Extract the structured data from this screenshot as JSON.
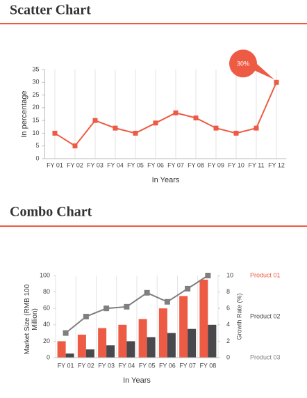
{
  "headings": [
    "Scatter Chart",
    "Combo Chart"
  ],
  "chart_data": [
    {
      "type": "line",
      "categories": [
        "FY 01",
        "FY 02",
        "FY 03",
        "FY 04",
        "FY 05",
        "FY 06",
        "FY 07",
        "FY 08",
        "FY 09",
        "FY 10",
        "FY 11",
        "FY 12"
      ],
      "values": [
        10,
        5,
        15,
        12,
        10,
        14,
        18,
        16,
        12,
        10,
        12,
        30
      ],
      "color": "#ee5b44",
      "ylim": [
        0,
        35
      ],
      "yticks": [
        0,
        5,
        10,
        15,
        20,
        25,
        30,
        35
      ],
      "x_label": "In Years",
      "y_label": "In percentage",
      "annotation": "30%",
      "grid": true
    },
    {
      "type": "combo",
      "categories": [
        "FY 01",
        "FY 02",
        "FY 03",
        "FY 04",
        "FY 05",
        "FY 06",
        "FY 07",
        "FY 08"
      ],
      "series": [
        {
          "name": "Product 01",
          "color": "#ee5b44",
          "type": "bar",
          "values": [
            20,
            28,
            36,
            40,
            47,
            60,
            75,
            95
          ]
        },
        {
          "name": "Product 02",
          "color": "#48484d",
          "type": "bar",
          "values": [
            5,
            10,
            15,
            20,
            25,
            30,
            35,
            40
          ]
        },
        {
          "name": "Product 03",
          "color": "#7f7f7f",
          "type": "line",
          "axis": "y2",
          "values": [
            3,
            5,
            6,
            6.2,
            7.9,
            6.8,
            8.4,
            10
          ]
        }
      ],
      "ylim": [
        0,
        100
      ],
      "yticks": [
        0,
        20,
        40,
        60,
        80,
        100
      ],
      "y2lim": [
        0,
        10
      ],
      "y2ticks": [
        0,
        2,
        4,
        6,
        8,
        10
      ],
      "x_label": "In Years",
      "y_label": "Market Size (RMB 100 Million)",
      "y2_label": "Growth Rate (%)",
      "grid": true
    }
  ]
}
